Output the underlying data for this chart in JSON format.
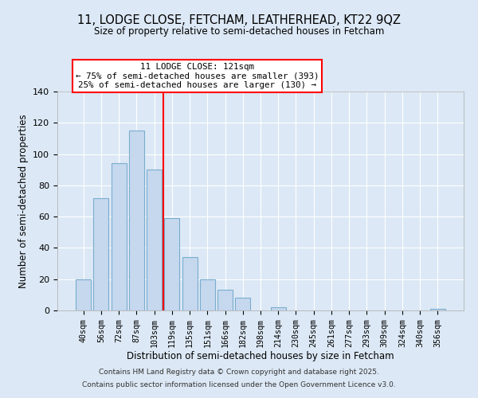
{
  "title": "11, LODGE CLOSE, FETCHAM, LEATHERHEAD, KT22 9QZ",
  "subtitle": "Size of property relative to semi-detached houses in Fetcham",
  "xlabel": "Distribution of semi-detached houses by size in Fetcham",
  "ylabel": "Number of semi-detached properties",
  "bar_labels": [
    "40sqm",
    "56sqm",
    "72sqm",
    "87sqm",
    "103sqm",
    "119sqm",
    "135sqm",
    "151sqm",
    "166sqm",
    "182sqm",
    "198sqm",
    "214sqm",
    "230sqm",
    "245sqm",
    "261sqm",
    "277sqm",
    "293sqm",
    "309sqm",
    "324sqm",
    "340sqm",
    "356sqm"
  ],
  "bar_values": [
    20,
    72,
    94,
    115,
    90,
    59,
    34,
    20,
    13,
    8,
    0,
    2,
    0,
    0,
    0,
    0,
    0,
    0,
    0,
    0,
    1
  ],
  "bar_color": "#c5d8ee",
  "bar_edge_color": "#7aadcf",
  "vline_color": "red",
  "vline_x_index": 5,
  "annotation_title": "11 LODGE CLOSE: 121sqm",
  "annotation_line1": "← 75% of semi-detached houses are smaller (393)",
  "annotation_line2": "25% of semi-detached houses are larger (130) →",
  "annotation_box_color": "white",
  "annotation_box_edge_color": "red",
  "ylim": [
    0,
    140
  ],
  "yticks": [
    0,
    20,
    40,
    60,
    80,
    100,
    120,
    140
  ],
  "footer_line1": "Contains HM Land Registry data © Crown copyright and database right 2025.",
  "footer_line2": "Contains public sector information licensed under the Open Government Licence v3.0.",
  "background_color": "#dce8f5",
  "plot_bg_color": "#dce8f5",
  "grid_color": "white"
}
